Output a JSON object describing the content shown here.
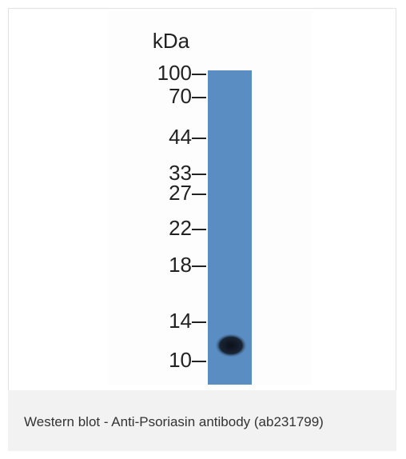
{
  "figure": {
    "unit": "kDa",
    "markers": [
      "100",
      "70",
      "44",
      "33",
      "27",
      "22",
      "18",
      "14",
      "10"
    ]
  },
  "caption": "Western blot - Anti-Psoriasin antibody (ab231799)"
}
